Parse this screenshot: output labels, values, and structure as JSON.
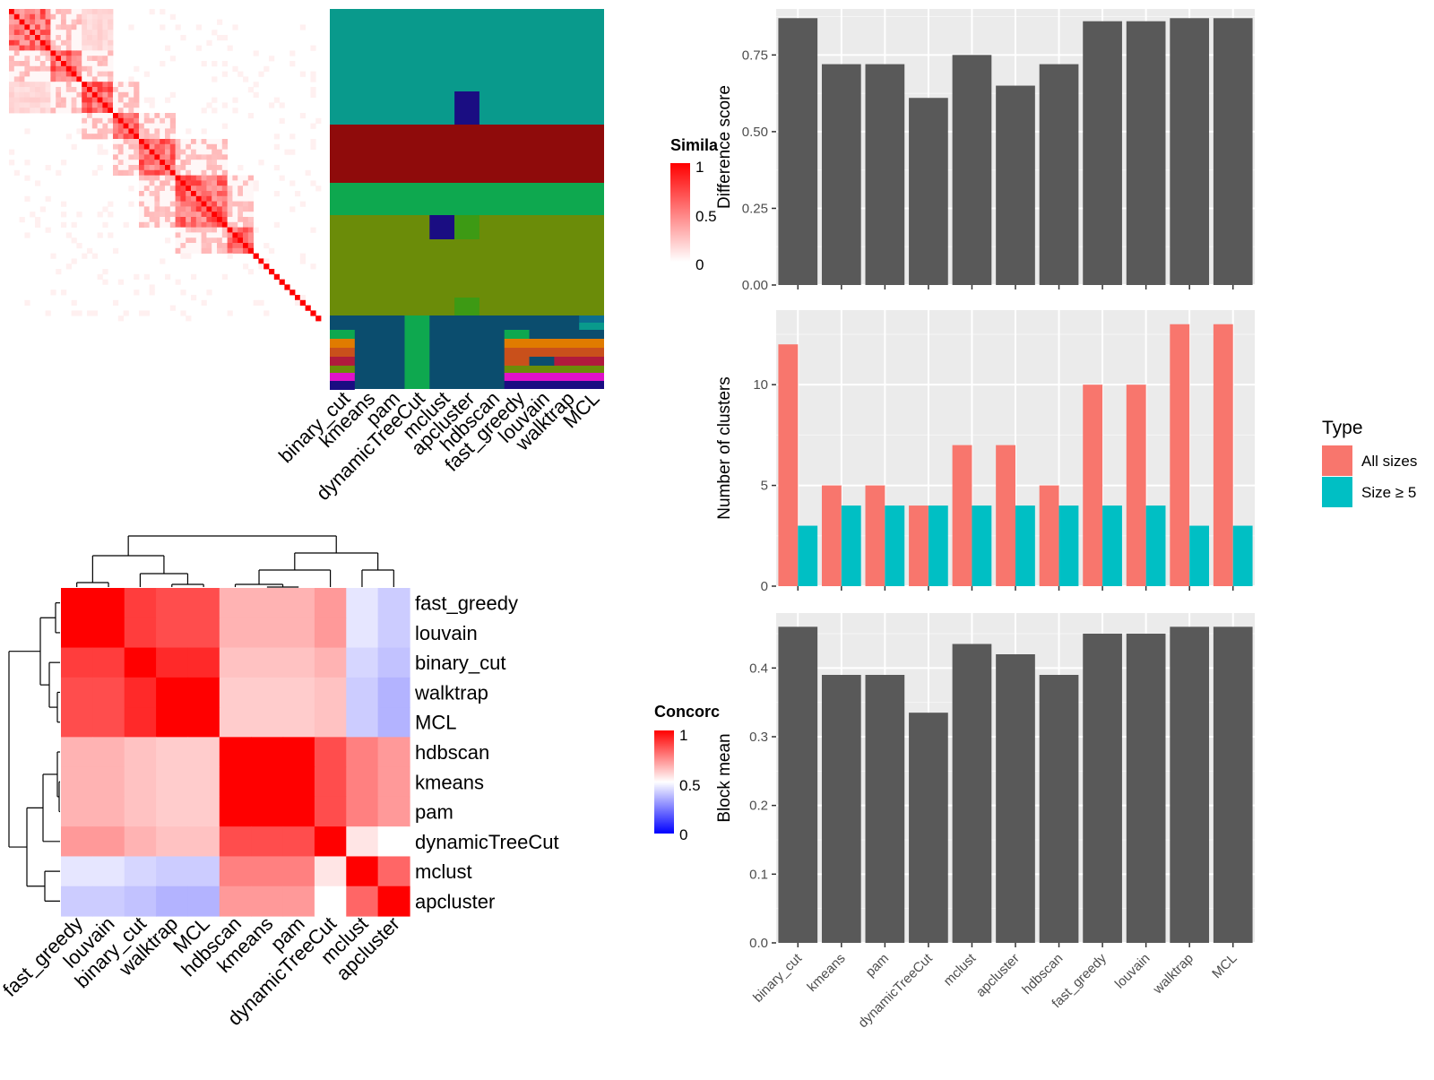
{
  "colors": {
    "panel_bg": "#ebebeb",
    "bar_gray": "#595959",
    "all_sizes": "#f8766d",
    "size_ge_5": "#00bfc4",
    "heat_high": "#ff0000",
    "heat_mid": "#ffffff",
    "heat_low": "#0000ff"
  },
  "similarity_panel": {
    "legend_title": "Simila",
    "legend_ticks": [
      "1",
      "0.5",
      "0"
    ],
    "method_labels": [
      "binary_cut",
      "kmeans",
      "pam",
      "dynamicTreeCut",
      "mclust",
      "apcluster",
      "hdbscan",
      "fast_greedy",
      "louvain",
      "walktrap",
      "MCL"
    ]
  },
  "concordance_panel": {
    "legend_title": "Concorc",
    "legend_ticks": [
      "1",
      "0.5",
      "0"
    ],
    "row_labels": [
      "fast_greedy",
      "louvain",
      "binary_cut",
      "walktrap",
      "MCL",
      "hdbscan",
      "kmeans",
      "pam",
      "dynamicTreeCut",
      "mclust",
      "apcluster"
    ],
    "col_labels": [
      "fast_greedy",
      "louvain",
      "binary_cut",
      "walktrap",
      "MCL",
      "hdbscan",
      "kmeans",
      "pam",
      "dynamicTreeCut",
      "mclust",
      "apcluster"
    ]
  },
  "legend_type": {
    "title": "Type",
    "items": [
      {
        "label": "All sizes",
        "color": "#f8766d"
      },
      {
        "label": "Size ≥ 5",
        "color": "#00bfc4"
      }
    ]
  },
  "chart_data": [
    {
      "type": "bar",
      "categories": [
        "binary_cut",
        "kmeans",
        "pam",
        "dynamicTreeCut",
        "mclust",
        "apcluster",
        "hdbscan",
        "fast_greedy",
        "louvain",
        "walktrap",
        "MCL"
      ],
      "values": [
        0.87,
        0.72,
        0.72,
        0.61,
        0.75,
        0.65,
        0.72,
        0.86,
        0.86,
        0.87,
        0.87
      ],
      "ylabel": "Difference score",
      "ylim": [
        0,
        0.9
      ],
      "yticks": [
        "0.00",
        "0.25",
        "0.50",
        "0.75"
      ],
      "grid": true
    },
    {
      "type": "bar",
      "categories": [
        "binary_cut",
        "kmeans",
        "pam",
        "dynamicTreeCut",
        "mclust",
        "apcluster",
        "hdbscan",
        "fast_greedy",
        "louvain",
        "walktrap",
        "MCL"
      ],
      "series": [
        {
          "name": "All sizes",
          "values": [
            12,
            5,
            5,
            4,
            7,
            7,
            5,
            10,
            10,
            13,
            13
          ]
        },
        {
          "name": "Size ≥ 5",
          "values": [
            3,
            4,
            4,
            4,
            4,
            4,
            4,
            4,
            4,
            3,
            3
          ]
        }
      ],
      "ylabel": "Number of clusters",
      "ylim": [
        0,
        13.7
      ],
      "yticks": [
        "0",
        "5",
        "10"
      ],
      "legend": "right",
      "grid": true
    },
    {
      "type": "bar",
      "categories": [
        "binary_cut",
        "kmeans",
        "pam",
        "dynamicTreeCut",
        "mclust",
        "apcluster",
        "hdbscan",
        "fast_greedy",
        "louvain",
        "walktrap",
        "MCL"
      ],
      "values": [
        0.46,
        0.39,
        0.39,
        0.335,
        0.435,
        0.42,
        0.39,
        0.45,
        0.45,
        0.46,
        0.46
      ],
      "ylabel": "Block mean",
      "ylim": [
        0,
        0.48
      ],
      "yticks": [
        "0.0",
        "0.1",
        "0.2",
        "0.3",
        "0.4"
      ],
      "grid": true
    },
    {
      "type": "heatmap",
      "rows": [
        "fast_greedy",
        "louvain",
        "binary_cut",
        "walktrap",
        "MCL",
        "hdbscan",
        "kmeans",
        "pam",
        "dynamicTreeCut",
        "mclust",
        "apcluster"
      ],
      "cols": [
        "fast_greedy",
        "louvain",
        "binary_cut",
        "walktrap",
        "MCL",
        "hdbscan",
        "kmeans",
        "pam",
        "dynamicTreeCut",
        "mclust",
        "apcluster"
      ],
      "values": [
        [
          1.0,
          1.0,
          0.88,
          0.85,
          0.85,
          0.65,
          0.65,
          0.65,
          0.7,
          0.45,
          0.4
        ],
        [
          1.0,
          1.0,
          0.88,
          0.85,
          0.85,
          0.65,
          0.65,
          0.65,
          0.7,
          0.45,
          0.4
        ],
        [
          0.88,
          0.88,
          1.0,
          0.92,
          0.92,
          0.62,
          0.62,
          0.62,
          0.65,
          0.42,
          0.38
        ],
        [
          0.85,
          0.85,
          0.92,
          1.0,
          1.0,
          0.6,
          0.6,
          0.6,
          0.62,
          0.4,
          0.35
        ],
        [
          0.85,
          0.85,
          0.92,
          1.0,
          1.0,
          0.6,
          0.6,
          0.6,
          0.62,
          0.4,
          0.35
        ],
        [
          0.65,
          0.65,
          0.62,
          0.6,
          0.6,
          1.0,
          1.0,
          1.0,
          0.85,
          0.75,
          0.7
        ],
        [
          0.65,
          0.65,
          0.62,
          0.6,
          0.6,
          1.0,
          1.0,
          1.0,
          0.85,
          0.75,
          0.7
        ],
        [
          0.65,
          0.65,
          0.62,
          0.6,
          0.6,
          1.0,
          1.0,
          1.0,
          0.85,
          0.75,
          0.7
        ],
        [
          0.7,
          0.7,
          0.65,
          0.62,
          0.62,
          0.85,
          0.85,
          0.85,
          1.0,
          0.55,
          0.5
        ],
        [
          0.45,
          0.45,
          0.42,
          0.4,
          0.4,
          0.75,
          0.75,
          0.75,
          0.55,
          1.0,
          0.8
        ],
        [
          0.4,
          0.4,
          0.38,
          0.35,
          0.35,
          0.7,
          0.7,
          0.7,
          0.5,
          0.8,
          1.0
        ]
      ],
      "scale": [
        0,
        1
      ]
    }
  ]
}
